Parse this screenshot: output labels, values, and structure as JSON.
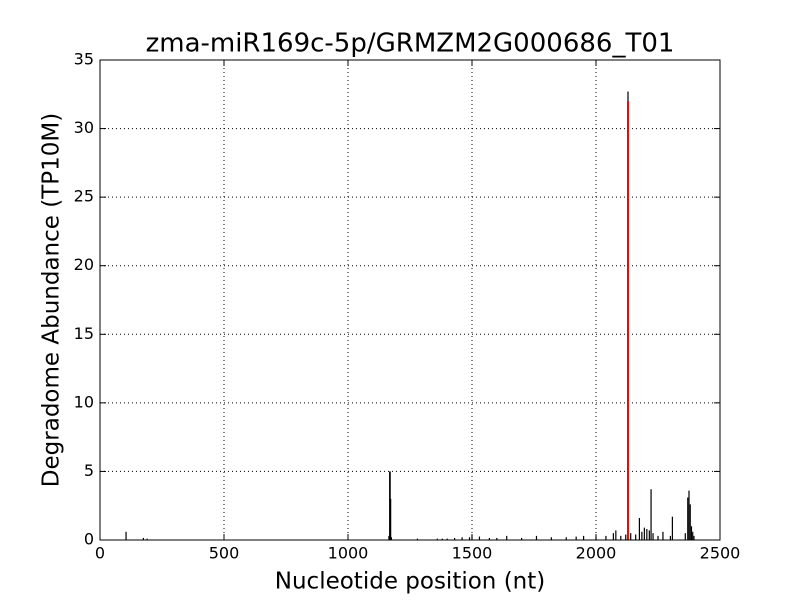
{
  "chart_data": {
    "type": "stem",
    "title": "zma-miR169c-5p/GRMZM2G000686_T01",
    "x_label": "Nucleotide position (nt)",
    "y_label": "Degradome Abundance (TP10M)",
    "xlim": [
      0,
      2500
    ],
    "xticks": [
      0,
      500,
      1000,
      1500,
      2000,
      2500
    ],
    "ylim": [
      0,
      35
    ],
    "yticks": [
      0,
      5,
      10,
      15,
      20,
      25,
      30,
      35
    ],
    "grid": true,
    "series": [
      {
        "color": "#000000",
        "x": [
          105,
          175,
          190,
          1165,
          1168,
          1170,
          1172,
          1175,
          1280,
          1360,
          1380,
          1400,
          1430,
          1460,
          1490,
          1500,
          1530,
          1570,
          1600,
          1640,
          1700,
          1760,
          1820,
          1880,
          1920,
          1950,
          2000,
          2040,
          2070,
          2080,
          2100,
          2120,
          2129,
          2140,
          2160,
          2175,
          2185,
          2195,
          2205,
          2215,
          2222,
          2230,
          2250,
          2270,
          2300,
          2308,
          2360,
          2370,
          2375,
          2380,
          2385,
          2390,
          2395
        ],
        "values": [
          0.6,
          0.15,
          0.1,
          0.3,
          5.0,
          5.0,
          3.0,
          0.2,
          0.1,
          0.1,
          0.1,
          0.1,
          0.15,
          0.2,
          0.2,
          0.35,
          0.25,
          0.15,
          0.15,
          0.3,
          0.15,
          0.3,
          0.2,
          0.2,
          0.25,
          0.3,
          0.25,
          0.3,
          0.5,
          0.7,
          0.3,
          0.4,
          32.7,
          0.5,
          0.4,
          1.6,
          0.6,
          0.9,
          0.8,
          0.7,
          3.7,
          0.5,
          0.3,
          0.6,
          0.3,
          1.7,
          0.5,
          3.1,
          3.6,
          2.6,
          1.0,
          0.6,
          0.3
        ]
      },
      {
        "color": "#ff0000",
        "x": [
          2129
        ],
        "values": [
          32
        ]
      }
    ]
  }
}
